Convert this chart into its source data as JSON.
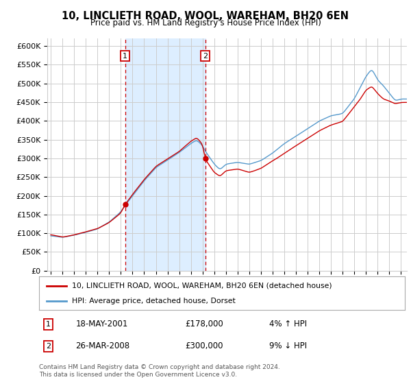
{
  "title": "10, LINCLIETH ROAD, WOOL, WAREHAM, BH20 6EN",
  "subtitle": "Price paid vs. HM Land Registry's House Price Index (HPI)",
  "ylabel_ticks": [
    "£0",
    "£50K",
    "£100K",
    "£150K",
    "£200K",
    "£250K",
    "£300K",
    "£350K",
    "£400K",
    "£450K",
    "£500K",
    "£550K",
    "£600K"
  ],
  "ytick_vals": [
    0,
    50000,
    100000,
    150000,
    200000,
    250000,
    300000,
    350000,
    400000,
    450000,
    500000,
    550000,
    600000
  ],
  "legend_line1": "10, LINCLIETH ROAD, WOOL, WAREHAM, BH20 6EN (detached house)",
  "legend_line2": "HPI: Average price, detached house, Dorset",
  "sale1_date": "18-MAY-2001",
  "sale1_price": 178000,
  "sale1_pct": "4% ↑ HPI",
  "sale2_date": "26-MAR-2008",
  "sale2_price": 300000,
  "sale2_pct": "9% ↓ HPI",
  "footnote1": "Contains HM Land Registry data © Crown copyright and database right 2024.",
  "footnote2": "This data is licensed under the Open Government Licence v3.0.",
  "line_color_red": "#cc0000",
  "line_color_blue": "#5599cc",
  "vline_color": "#cc0000",
  "shade_color": "#ddeeff",
  "background_color": "#ffffff",
  "grid_color": "#cccccc",
  "sale1_x": 2001.371,
  "sale2_x": 2008.228,
  "xlim_left": 1994.7,
  "xlim_right": 2025.5,
  "ylim_bottom": 0,
  "ylim_top": 620000
}
